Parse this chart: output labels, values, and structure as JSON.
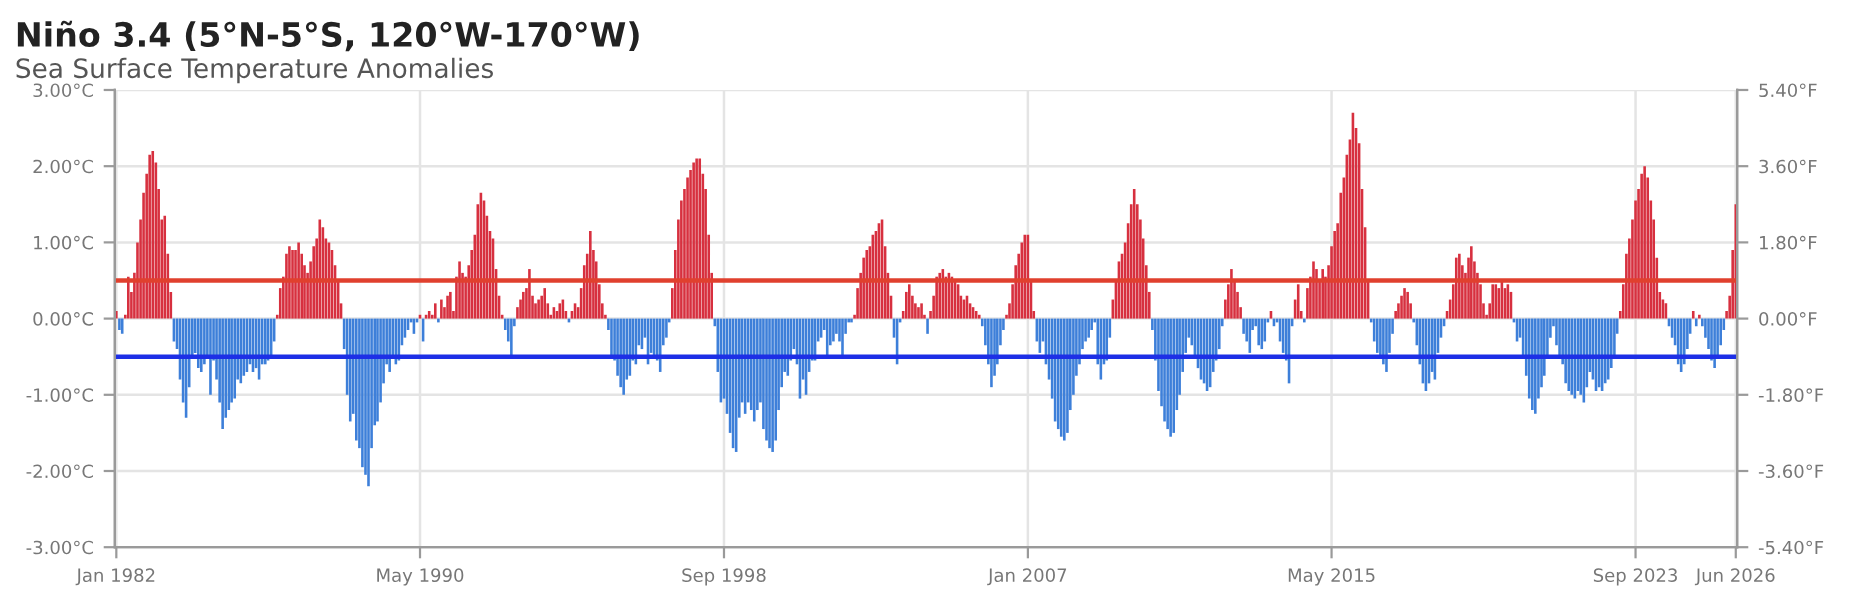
{
  "chart_data": {
    "type": "bar",
    "title": "Niño 3.4 (5°N-5°S, 120°W-170°W)",
    "subtitle": "Sea Surface Temperature Anomalies",
    "x": [
      "1982-01",
      "1982-02",
      "1982-03",
      "1982-04",
      "1982-05",
      "1982-06",
      "1982-07",
      "1982-08",
      "1982-09",
      "1982-10",
      "1982-11",
      "1982-12",
      "1983-01",
      "1983-02",
      "1983-03",
      "1983-04",
      "1983-05",
      "1983-06",
      "1983-07",
      "1983-08",
      "1983-09",
      "1983-10",
      "1983-11",
      "1983-12",
      "1984-01",
      "1984-02",
      "1984-03",
      "1984-04",
      "1984-05",
      "1984-06",
      "1984-07",
      "1984-08",
      "1984-09",
      "1984-10",
      "1984-11",
      "1984-12",
      "1985-01",
      "1985-02",
      "1985-03",
      "1985-04",
      "1985-05",
      "1985-06",
      "1985-07",
      "1985-08",
      "1985-09",
      "1985-10",
      "1985-11",
      "1985-12",
      "1986-01",
      "1986-02",
      "1986-03",
      "1986-04",
      "1986-05",
      "1986-06",
      "1986-07",
      "1986-08",
      "1986-09",
      "1986-10",
      "1986-11",
      "1986-12",
      "1987-01",
      "1987-02",
      "1987-03",
      "1987-04",
      "1987-05",
      "1987-06",
      "1987-07",
      "1987-08",
      "1987-09",
      "1987-10",
      "1987-11",
      "1987-12",
      "1988-01",
      "1988-02",
      "1988-03",
      "1988-04",
      "1988-05",
      "1988-06",
      "1988-07",
      "1988-08",
      "1988-09",
      "1988-10",
      "1988-11",
      "1988-12",
      "1989-01",
      "1989-02",
      "1989-03",
      "1989-04",
      "1989-05",
      "1989-06",
      "1989-07",
      "1989-08",
      "1989-09",
      "1989-10",
      "1989-11",
      "1989-12",
      "1990-01",
      "1990-02",
      "1990-03",
      "1990-04",
      "1990-05",
      "1990-06",
      "1990-07",
      "1990-08",
      "1990-09",
      "1990-10",
      "1990-11",
      "1990-12",
      "1991-01",
      "1991-02",
      "1991-03",
      "1991-04",
      "1991-05",
      "1991-06",
      "1991-07",
      "1991-08",
      "1991-09",
      "1991-10",
      "1991-11",
      "1991-12",
      "1992-01",
      "1992-02",
      "1992-03",
      "1992-04",
      "1992-05",
      "1992-06",
      "1992-07",
      "1992-08",
      "1992-09",
      "1992-10",
      "1992-11",
      "1992-12",
      "1993-01",
      "1993-02",
      "1993-03",
      "1993-04",
      "1993-05",
      "1993-06",
      "1993-07",
      "1993-08",
      "1993-09",
      "1993-10",
      "1993-11",
      "1993-12",
      "1994-01",
      "1994-02",
      "1994-03",
      "1994-04",
      "1994-05",
      "1994-06",
      "1994-07",
      "1994-08",
      "1994-09",
      "1994-10",
      "1994-11",
      "1994-12",
      "1995-01",
      "1995-02",
      "1995-03",
      "1995-04",
      "1995-05",
      "1995-06",
      "1995-07",
      "1995-08",
      "1995-09",
      "1995-10",
      "1995-11",
      "1995-12",
      "1996-01",
      "1996-02",
      "1996-03",
      "1996-04",
      "1996-05",
      "1996-06",
      "1996-07",
      "1996-08",
      "1996-09",
      "1996-10",
      "1996-11",
      "1996-12",
      "1997-01",
      "1997-02",
      "1997-03",
      "1997-04",
      "1997-05",
      "1997-06",
      "1997-07",
      "1997-08",
      "1997-09",
      "1997-10",
      "1997-11",
      "1997-12",
      "1998-01",
      "1998-02",
      "1998-03",
      "1998-04",
      "1998-05",
      "1998-06",
      "1998-07",
      "1998-08",
      "1998-09",
      "1998-10",
      "1998-11",
      "1998-12",
      "1999-01",
      "1999-02",
      "1999-03",
      "1999-04",
      "1999-05",
      "1999-06",
      "1999-07",
      "1999-08",
      "1999-09",
      "1999-10",
      "1999-11",
      "1999-12",
      "2000-01",
      "2000-02",
      "2000-03",
      "2000-04",
      "2000-05",
      "2000-06",
      "2000-07",
      "2000-08",
      "2000-09",
      "2000-10",
      "2000-11",
      "2000-12",
      "2001-01",
      "2001-02",
      "2001-03",
      "2001-04",
      "2001-05",
      "2001-06",
      "2001-07",
      "2001-08",
      "2001-09",
      "2001-10",
      "2001-11",
      "2001-12",
      "2002-01",
      "2002-02",
      "2002-03",
      "2002-04",
      "2002-05",
      "2002-06",
      "2002-07",
      "2002-08",
      "2002-09",
      "2002-10",
      "2002-11",
      "2002-12",
      "2003-01",
      "2003-02",
      "2003-03",
      "2003-04",
      "2003-05",
      "2003-06",
      "2003-07",
      "2003-08",
      "2003-09",
      "2003-10",
      "2003-11",
      "2003-12",
      "2004-01",
      "2004-02",
      "2004-03",
      "2004-04",
      "2004-05",
      "2004-06",
      "2004-07",
      "2004-08",
      "2004-09",
      "2004-10",
      "2004-11",
      "2004-12",
      "2005-01",
      "2005-02",
      "2005-03",
      "2005-04",
      "2005-05",
      "2005-06",
      "2005-07",
      "2005-08",
      "2005-09",
      "2005-10",
      "2005-11",
      "2005-12",
      "2006-01",
      "2006-02",
      "2006-03",
      "2006-04",
      "2006-05",
      "2006-06",
      "2006-07",
      "2006-08",
      "2006-09",
      "2006-10",
      "2006-11",
      "2006-12",
      "2007-01",
      "2007-02",
      "2007-03",
      "2007-04",
      "2007-05",
      "2007-06",
      "2007-07",
      "2007-08",
      "2007-09",
      "2007-10",
      "2007-11",
      "2007-12",
      "2008-01",
      "2008-02",
      "2008-03",
      "2008-04",
      "2008-05",
      "2008-06",
      "2008-07",
      "2008-08",
      "2008-09",
      "2008-10",
      "2008-11",
      "2008-12",
      "2009-01",
      "2009-02",
      "2009-03",
      "2009-04",
      "2009-05",
      "2009-06",
      "2009-07",
      "2009-08",
      "2009-09",
      "2009-10",
      "2009-11",
      "2009-12",
      "2010-01",
      "2010-02",
      "2010-03",
      "2010-04",
      "2010-05",
      "2010-06",
      "2010-07",
      "2010-08",
      "2010-09",
      "2010-10",
      "2010-11",
      "2010-12",
      "2011-01",
      "2011-02",
      "2011-03",
      "2011-04",
      "2011-05",
      "2011-06",
      "2011-07",
      "2011-08",
      "2011-09",
      "2011-10",
      "2011-11",
      "2011-12",
      "2012-01",
      "2012-02",
      "2012-03",
      "2012-04",
      "2012-05",
      "2012-06",
      "2012-07",
      "2012-08",
      "2012-09",
      "2012-10",
      "2012-11",
      "2012-12",
      "2013-01",
      "2013-02",
      "2013-03",
      "2013-04",
      "2013-05",
      "2013-06",
      "2013-07",
      "2013-08",
      "2013-09",
      "2013-10",
      "2013-11",
      "2013-12",
      "2014-01",
      "2014-02",
      "2014-03",
      "2014-04",
      "2014-05",
      "2014-06",
      "2014-07",
      "2014-08",
      "2014-09",
      "2014-10",
      "2014-11",
      "2014-12",
      "2015-01",
      "2015-02",
      "2015-03",
      "2015-04",
      "2015-05",
      "2015-06",
      "2015-07",
      "2015-08",
      "2015-09",
      "2015-10",
      "2015-11",
      "2015-12",
      "2016-01",
      "2016-02",
      "2016-03",
      "2016-04",
      "2016-05",
      "2016-06",
      "2016-07",
      "2016-08",
      "2016-09",
      "2016-10",
      "2016-11",
      "2016-12",
      "2017-01",
      "2017-02",
      "2017-03",
      "2017-04",
      "2017-05",
      "2017-06",
      "2017-07",
      "2017-08",
      "2017-09",
      "2017-10",
      "2017-11",
      "2017-12",
      "2018-01",
      "2018-02",
      "2018-03",
      "2018-04",
      "2018-05",
      "2018-06",
      "2018-07",
      "2018-08",
      "2018-09",
      "2018-10",
      "2018-11",
      "2018-12",
      "2019-01",
      "2019-02",
      "2019-03",
      "2019-04",
      "2019-05",
      "2019-06",
      "2019-07",
      "2019-08",
      "2019-09",
      "2019-10",
      "2019-11",
      "2019-12",
      "2020-01",
      "2020-02",
      "2020-03",
      "2020-04",
      "2020-05",
      "2020-06",
      "2020-07",
      "2020-08",
      "2020-09",
      "2020-10",
      "2020-11",
      "2020-12",
      "2021-01",
      "2021-02",
      "2021-03",
      "2021-04",
      "2021-05",
      "2021-06",
      "2021-07",
      "2021-08",
      "2021-09",
      "2021-10",
      "2021-11",
      "2021-12",
      "2022-01",
      "2022-02",
      "2022-03",
      "2022-04",
      "2022-05",
      "2022-06",
      "2022-07",
      "2022-08",
      "2022-09",
      "2022-10",
      "2022-11",
      "2022-12",
      "2023-01",
      "2023-02",
      "2023-03",
      "2023-04",
      "2023-05",
      "2023-06",
      "2023-07",
      "2023-08",
      "2023-09",
      "2023-10",
      "2023-11",
      "2023-12",
      "2024-01",
      "2024-02",
      "2024-03",
      "2024-04",
      "2024-05",
      "2024-06",
      "2024-07",
      "2024-08",
      "2024-09",
      "2024-10",
      "2024-11",
      "2024-12",
      "2025-01",
      "2025-02",
      "2025-03",
      "2025-04",
      "2025-05",
      "2025-06",
      "2025-07",
      "2025-08",
      "2025-09",
      "2025-10",
      "2025-11",
      "2025-12",
      "2026-01",
      "2026-02",
      "2026-03",
      "2026-04",
      "2026-05",
      "2026-06"
    ],
    "series": [
      {
        "color": "#d7303f",
        "values": [
          0.1,
          null,
          null,
          0.05,
          0.55,
          0.35,
          0.6,
          1.0,
          1.3,
          1.65,
          1.9,
          2.15,
          2.2,
          2.05,
          1.7,
          1.3,
          1.35,
          0.85,
          0.35,
          null,
          null,
          null,
          null,
          null,
          null,
          null,
          null,
          null,
          null,
          null,
          null,
          null,
          null,
          null,
          null,
          null,
          null,
          null,
          null,
          null,
          null,
          null,
          null,
          null,
          null,
          null,
          null,
          null,
          null,
          null,
          null,
          null,
          null,
          0.05,
          0.4,
          0.55,
          0.85,
          0.95,
          0.9,
          0.9,
          1.0,
          0.85,
          0.7,
          0.6,
          0.75,
          0.95,
          1.05,
          1.3,
          1.2,
          1.05,
          1.0,
          0.9,
          0.7,
          0.5,
          0.2,
          null,
          null,
          null,
          null,
          null,
          null,
          null,
          null,
          null,
          null,
          null,
          null,
          null,
          null,
          null,
          null,
          null,
          null,
          null,
          null,
          null,
          null,
          null,
          null,
          null,
          0.05,
          null,
          0.05,
          0.1,
          0.05,
          0.2,
          null,
          0.25,
          0.15,
          0.3,
          0.35,
          0.1,
          0.55,
          0.75,
          0.6,
          0.55,
          0.7,
          0.9,
          1.1,
          1.5,
          1.65,
          1.55,
          1.35,
          1.15,
          1.05,
          0.65,
          0.3,
          0.05,
          null,
          null,
          null,
          null,
          0.15,
          0.25,
          0.35,
          0.4,
          0.65,
          0.3,
          0.2,
          0.25,
          0.3,
          0.4,
          0.2,
          0.05,
          0.15,
          0.1,
          0.2,
          0.25,
          0.1,
          null,
          0.1,
          0.2,
          0.15,
          0.4,
          0.7,
          0.85,
          1.15,
          0.9,
          0.75,
          0.45,
          0.2,
          0.05,
          null,
          null,
          null,
          null,
          null,
          null,
          null,
          null,
          null,
          null,
          null,
          null,
          null,
          null,
          null,
          null,
          null,
          null,
          null,
          null,
          null,
          0.4,
          0.9,
          1.3,
          1.55,
          1.7,
          1.85,
          1.95,
          2.05,
          2.1,
          2.1,
          1.9,
          1.7,
          1.1,
          0.6,
          null,
          null,
          null,
          null,
          null,
          null,
          null,
          null,
          null,
          null,
          null,
          null,
          null,
          null,
          null,
          null,
          null,
          null,
          null,
          null,
          null,
          null,
          null,
          null,
          null,
          null,
          null,
          null,
          null,
          null,
          null,
          null,
          null,
          null,
          null,
          null,
          null,
          null,
          null,
          null,
          null,
          null,
          null,
          null,
          null,
          null,
          0.05,
          0.4,
          0.6,
          0.8,
          0.9,
          0.95,
          1.1,
          1.15,
          1.25,
          1.3,
          0.95,
          0.6,
          0.3,
          null,
          null,
          null,
          0.1,
          0.35,
          0.45,
          0.3,
          0.2,
          0.15,
          0.2,
          0.05,
          null,
          0.1,
          0.3,
          0.55,
          0.6,
          0.65,
          0.55,
          0.6,
          0.55,
          0.5,
          0.45,
          0.3,
          0.25,
          0.3,
          0.2,
          0.15,
          0.1,
          0.05,
          null,
          null,
          null,
          null,
          null,
          null,
          null,
          null,
          0.05,
          0.2,
          0.45,
          0.7,
          0.85,
          1.0,
          1.1,
          1.1,
          0.5,
          0.1,
          null,
          null,
          null,
          null,
          null,
          null,
          null,
          null,
          null,
          null,
          null,
          null,
          null,
          null,
          null,
          null,
          null,
          null,
          null,
          null,
          null,
          null,
          null,
          null,
          null,
          0.25,
          0.5,
          0.75,
          0.85,
          1.0,
          1.25,
          1.5,
          1.7,
          1.5,
          1.3,
          1.05,
          0.7,
          0.35,
          null,
          null,
          null,
          null,
          null,
          null,
          null,
          null,
          null,
          null,
          null,
          null,
          null,
          null,
          null,
          null,
          null,
          null,
          null,
          null,
          null,
          null,
          null,
          null,
          0.25,
          0.45,
          0.65,
          0.5,
          0.35,
          0.15,
          null,
          null,
          null,
          null,
          null,
          null,
          null,
          null,
          null,
          0.1,
          null,
          null,
          null,
          null,
          null,
          null,
          null,
          0.25,
          0.45,
          0.1,
          null,
          0.4,
          0.55,
          0.75,
          0.65,
          0.5,
          0.65,
          0.55,
          0.7,
          0.95,
          1.15,
          1.25,
          1.65,
          1.85,
          2.15,
          2.35,
          2.7,
          2.5,
          2.3,
          1.7,
          1.2,
          0.5,
          null,
          null,
          null,
          null,
          null,
          null,
          null,
          null,
          0.1,
          0.2,
          0.3,
          0.4,
          0.35,
          0.2,
          null,
          null,
          null,
          null,
          null,
          null,
          null,
          null,
          null,
          null,
          null,
          0.1,
          0.25,
          0.45,
          0.8,
          0.85,
          0.7,
          0.6,
          0.8,
          0.95,
          0.75,
          0.6,
          0.45,
          0.2,
          0.05,
          0.2,
          0.45,
          0.45,
          0.4,
          0.5,
          0.4,
          0.45,
          0.35,
          null,
          null,
          null,
          null,
          null,
          null,
          null,
          null,
          null,
          null,
          null,
          null,
          null,
          null,
          null,
          null,
          null,
          null,
          null,
          null,
          null,
          null,
          null,
          null,
          null,
          null,
          null,
          null,
          null,
          null,
          null,
          null,
          null,
          null,
          null,
          0.1,
          0.45,
          0.85,
          1.05,
          1.3,
          1.55,
          1.7,
          1.9,
          2.0,
          1.85,
          1.55,
          1.3,
          0.8,
          0.35,
          0.25,
          0.2,
          null,
          null,
          null,
          null,
          null,
          null,
          null,
          null,
          0.1,
          null,
          0.05,
          null,
          null,
          null,
          null,
          null,
          null,
          null,
          null,
          0.1,
          0.3,
          0.9,
          1.5
        ]
      },
      {
        "color": "#3d7fd9",
        "values": [
          null,
          -0.15,
          -0.2,
          null,
          null,
          null,
          null,
          null,
          null,
          null,
          null,
          null,
          null,
          null,
          null,
          null,
          null,
          null,
          null,
          -0.3,
          -0.4,
          -0.8,
          -1.1,
          -1.3,
          -0.9,
          -0.5,
          -0.45,
          -0.65,
          -0.7,
          -0.6,
          -0.5,
          -1.0,
          -0.55,
          -0.8,
          -1.1,
          -1.45,
          -1.3,
          -1.2,
          -1.1,
          -1.05,
          -0.8,
          -0.85,
          -0.75,
          -0.7,
          -0.6,
          -0.7,
          -0.65,
          -0.8,
          -0.6,
          -0.6,
          -0.55,
          -0.5,
          -0.3,
          null,
          null,
          null,
          null,
          null,
          null,
          null,
          null,
          null,
          null,
          null,
          null,
          null,
          null,
          null,
          null,
          null,
          null,
          null,
          null,
          null,
          null,
          -0.4,
          -1.0,
          -1.35,
          -1.25,
          -1.6,
          -1.7,
          -1.95,
          -2.05,
          -2.2,
          -1.7,
          -1.4,
          -1.35,
          -1.1,
          -0.85,
          -0.6,
          -0.7,
          -0.5,
          -0.6,
          -0.55,
          -0.35,
          -0.25,
          -0.15,
          -0.05,
          -0.2,
          -0.05,
          null,
          -0.3,
          null,
          null,
          null,
          null,
          -0.05,
          null,
          null,
          null,
          null,
          null,
          null,
          null,
          null,
          null,
          null,
          null,
          null,
          null,
          null,
          null,
          null,
          null,
          null,
          null,
          null,
          null,
          -0.15,
          -0.3,
          -0.5,
          -0.1,
          null,
          null,
          null,
          null,
          null,
          null,
          null,
          null,
          null,
          null,
          null,
          null,
          null,
          null,
          null,
          null,
          null,
          -0.05,
          null,
          null,
          null,
          null,
          null,
          null,
          null,
          null,
          null,
          null,
          null,
          null,
          -0.15,
          -0.5,
          -0.55,
          -0.75,
          -0.9,
          -1.0,
          -0.8,
          -0.75,
          -0.55,
          -0.6,
          -0.35,
          -0.4,
          -0.25,
          -0.6,
          -0.45,
          -0.5,
          -0.55,
          -0.7,
          -0.35,
          -0.25,
          -0.05,
          null,
          null,
          null,
          null,
          null,
          null,
          null,
          null,
          null,
          null,
          null,
          null,
          null,
          null,
          -0.1,
          -0.7,
          -1.1,
          -1.05,
          -1.25,
          -1.5,
          -1.7,
          -1.75,
          -1.3,
          -1.1,
          -1.25,
          -1.1,
          -1.2,
          -1.35,
          -1.2,
          -1.1,
          -1.45,
          -1.6,
          -1.7,
          -1.75,
          -1.6,
          -1.2,
          -0.9,
          -0.7,
          -0.75,
          -0.55,
          -0.4,
          -0.6,
          -1.05,
          -0.8,
          -1.0,
          -0.7,
          -0.55,
          -0.55,
          -0.3,
          -0.25,
          -0.15,
          -0.5,
          -0.35,
          -0.3,
          -0.2,
          -0.3,
          -0.5,
          -0.2,
          -0.05,
          -0.05,
          null,
          null,
          null,
          null,
          null,
          null,
          null,
          null,
          null,
          null,
          null,
          null,
          null,
          -0.25,
          -0.6,
          -0.05,
          null,
          null,
          null,
          null,
          null,
          null,
          null,
          null,
          -0.2,
          null,
          null,
          null,
          null,
          null,
          null,
          null,
          null,
          null,
          null,
          null,
          null,
          null,
          null,
          null,
          null,
          null,
          -0.1,
          -0.35,
          -0.6,
          -0.9,
          -0.75,
          -0.6,
          -0.35,
          -0.15,
          null,
          null,
          null,
          null,
          null,
          null,
          null,
          null,
          null,
          null,
          -0.3,
          -0.45,
          -0.3,
          -0.6,
          -0.8,
          -1.05,
          -1.35,
          -1.45,
          -1.55,
          -1.6,
          -1.5,
          -1.2,
          -1.0,
          -0.75,
          -0.6,
          -0.4,
          -0.3,
          -0.25,
          -0.15,
          -0.05,
          -0.6,
          -0.8,
          -0.6,
          -0.55,
          -0.25,
          null,
          null,
          null,
          null,
          null,
          null,
          null,
          null,
          null,
          null,
          null,
          null,
          null,
          -0.15,
          -0.55,
          -0.95,
          -1.15,
          -1.35,
          -1.45,
          -1.55,
          -1.5,
          -1.2,
          -1.0,
          -0.7,
          -0.45,
          -0.25,
          -0.35,
          -0.5,
          -0.65,
          -0.8,
          -0.85,
          -0.95,
          -0.9,
          -0.7,
          -0.55,
          -0.4,
          -0.1,
          null,
          null,
          null,
          null,
          null,
          null,
          -0.2,
          -0.3,
          -0.45,
          -0.15,
          -0.1,
          -0.35,
          -0.4,
          -0.3,
          -0.05,
          null,
          -0.1,
          -0.05,
          -0.3,
          -0.45,
          -0.55,
          -0.85,
          -0.1,
          null,
          null,
          null,
          -0.05,
          null,
          null,
          null,
          null,
          null,
          null,
          null,
          null,
          null,
          null,
          null,
          null,
          null,
          null,
          null,
          null,
          null,
          null,
          null,
          null,
          null,
          -0.05,
          -0.3,
          -0.45,
          -0.5,
          -0.6,
          -0.7,
          -0.45,
          -0.2,
          null,
          null,
          null,
          null,
          null,
          null,
          -0.05,
          -0.35,
          -0.6,
          -0.85,
          -0.95,
          -0.85,
          -0.7,
          -0.8,
          -0.45,
          -0.25,
          -0.1,
          null,
          null,
          null,
          null,
          null,
          null,
          null,
          null,
          null,
          null,
          null,
          null,
          null,
          null,
          null,
          null,
          null,
          null,
          null,
          null,
          null,
          null,
          -0.05,
          -0.3,
          -0.25,
          -0.5,
          -0.75,
          -1.05,
          -1.2,
          -1.25,
          -1.05,
          -0.9,
          -0.75,
          -0.5,
          -0.25,
          -0.1,
          -0.35,
          -0.5,
          -0.6,
          -0.85,
          -0.95,
          -1.0,
          -1.05,
          -0.95,
          -1.0,
          -1.1,
          -0.9,
          -0.7,
          -0.8,
          -0.95,
          -0.9,
          -0.95,
          -0.85,
          -0.8,
          -0.65,
          -0.5,
          -0.2,
          null,
          null,
          null,
          null,
          null,
          null,
          null,
          null,
          null,
          null,
          null,
          null,
          null,
          null,
          null,
          null,
          -0.1,
          -0.25,
          -0.35,
          -0.6,
          -0.7,
          -0.6,
          -0.4,
          -0.2,
          null,
          -0.1,
          null,
          -0.1,
          -0.25,
          -0.4,
          -0.55,
          -0.65,
          -0.5,
          -0.35,
          -0.15,
          null,
          null,
          null,
          null
        ]
      }
    ],
    "xlim": [
      "1981-12-17",
      "2026-06-15"
    ],
    "xticks": [
      {
        "value": "1982-01",
        "label": "Jan 1982"
      },
      {
        "value": "1990-05",
        "label": "May 1990"
      },
      {
        "value": "1998-09",
        "label": "Sep 1998"
      },
      {
        "value": "2007-01",
        "label": "Jan 2007"
      },
      {
        "value": "2015-05",
        "label": "May 2015"
      },
      {
        "value": "2023-09",
        "label": "Sep 2023"
      },
      {
        "value": "2026-06",
        "label": "Jun 2026"
      }
    ],
    "ylim": [
      -3,
      3
    ],
    "yticks": [
      {
        "value": -3,
        "label": "-3.00°C"
      },
      {
        "value": -2,
        "label": "-2.00°C"
      },
      {
        "value": -1,
        "label": "-1.00°C"
      },
      {
        "value": 0,
        "label": "0.00°C"
      },
      {
        "value": 1,
        "label": "1.00°C"
      },
      {
        "value": 2,
        "label": "2.00°C"
      },
      {
        "value": 3,
        "label": "3.00°C"
      }
    ],
    "y2lim": [
      -5.4,
      5.4
    ],
    "y2ticks": [
      {
        "value": -5.4,
        "label": "-5.40°F"
      },
      {
        "value": -3.6,
        "label": "-3.60°F"
      },
      {
        "value": -1.8,
        "label": "-1.80°F"
      },
      {
        "value": 0,
        "label": "0.00°F"
      },
      {
        "value": 1.8,
        "label": "1.80°F"
      },
      {
        "value": 3.6,
        "label": "3.60°F"
      },
      {
        "value": 5.4,
        "label": "5.40°F"
      }
    ],
    "ref_lines": [
      {
        "axis": "y",
        "value": 0.5,
        "color": "#e0402e"
      },
      {
        "axis": "y",
        "value": -0.5,
        "color": "#1d2fe6"
      }
    ],
    "grid": true
  }
}
